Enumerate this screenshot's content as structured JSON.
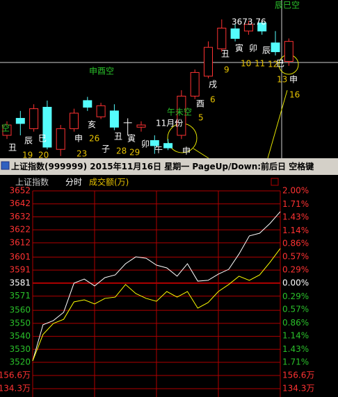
{
  "chart_data": [
    {
      "type": "candlestick",
      "ylim": [
        3486,
        3700
      ],
      "open": [
        3517,
        3540,
        3526,
        3555,
        3498,
        3526,
        3564,
        3542,
        3550,
        3534,
        3528,
        3510,
        3506,
        3517,
        3570,
        3597,
        3634,
        3661,
        3658,
        3669,
        3642,
        3617
      ],
      "high": [
        3536,
        3550,
        3559,
        3564,
        3531,
        3553,
        3569,
        3561,
        3559,
        3540,
        3536,
        3517,
        3512,
        3578,
        3606,
        3644,
        3673.76,
        3667,
        3672,
        3672,
        3658,
        3648
      ],
      "low": [
        3512,
        3517,
        3522,
        3498,
        3489,
        3522,
        3550,
        3539,
        3524,
        3517,
        3522,
        3492,
        3497,
        3512,
        3566,
        3594,
        3630,
        3644,
        3653,
        3653,
        3625,
        3611
      ],
      "close": [
        3531,
        3533,
        3553,
        3501,
        3526,
        3547,
        3555,
        3557,
        3528,
        3534,
        3531,
        3503,
        3500,
        3570,
        3602,
        3636,
        3662,
        3648,
        3667,
        3658,
        3630,
        3644
      ],
      "up_color": "#ff3232",
      "down_color": "#54fcfc",
      "flat_color": "#ffffff",
      "annotations": [
        {
          "text": "辰巳空",
          "color": "#2ac02a"
        },
        {
          "text": "3673.76",
          "color": "#ffffff"
        },
        {
          "text": "丑",
          "color": "#ffffff"
        },
        {
          "text": "寅",
          "color": "#ffffff"
        },
        {
          "text": "卯",
          "color": "#ffffff"
        },
        {
          "text": "辰",
          "color": "#ffffff"
        },
        {
          "text": "巳",
          "color": "#ffffff"
        },
        {
          "text": "9",
          "color": "#e6c200"
        },
        {
          "text": "10",
          "color": "#e6c200"
        },
        {
          "text": "11",
          "color": "#e6c200"
        },
        {
          "text": "12",
          "color": "#e6c200"
        },
        {
          "text": "13",
          "color": "#e6c200"
        },
        {
          "text": "申",
          "color": "#ffffff"
        },
        {
          "text": "16",
          "color": "#e6c200"
        },
        {
          "text": "申酉空",
          "color": "#2ac02a"
        },
        {
          "text": "戌",
          "color": "#ffffff"
        },
        {
          "text": "6",
          "color": "#e6c200"
        },
        {
          "text": "酉",
          "color": "#ffffff"
        },
        {
          "text": "5",
          "color": "#e6c200"
        },
        {
          "text": "午未空",
          "color": "#2ac02a"
        },
        {
          "text": "11月份",
          "color": "#ffffff"
        },
        {
          "text": "申",
          "color": "#ffffff"
        },
        {
          "text": "亥",
          "color": "#ffffff"
        },
        {
          "text": "26",
          "color": "#e6c200"
        },
        {
          "text": "丑",
          "color": "#ffffff"
        },
        {
          "text": "28",
          "color": "#e6c200"
        },
        {
          "text": "寅",
          "color": "#ffffff"
        },
        {
          "text": "29",
          "color": "#e6c200"
        },
        {
          "text": "子",
          "color": "#ffffff"
        },
        {
          "text": "申",
          "color": "#ffffff"
        },
        {
          "text": "23",
          "color": "#e6c200"
        },
        {
          "text": "卯",
          "color": "#ffffff"
        },
        {
          "text": "午",
          "color": "#ffffff"
        },
        {
          "text": "巳",
          "color": "#ffffff"
        },
        {
          "text": "辰",
          "color": "#ffffff"
        },
        {
          "text": "19",
          "color": "#e6c200"
        },
        {
          "text": "20",
          "color": "#e6c200"
        },
        {
          "text": "空",
          "color": "#2ac02a"
        },
        {
          "text": "丑",
          "color": "#ffffff"
        }
      ]
    },
    {
      "type": "line",
      "title": "上证指数",
      "subtitle": "分时",
      "volume_label": "成交额(万)",
      "x": [
        0,
        10,
        20,
        30,
        40,
        50,
        60,
        70,
        80,
        90,
        100,
        110,
        120,
        130,
        140,
        150,
        160,
        170,
        180,
        190,
        200,
        210,
        220,
        230,
        240
      ],
      "xlim": [
        0,
        240
      ],
      "xticks": [
        0,
        60,
        120,
        180,
        240
      ],
      "ylim": [
        3520,
        3652
      ],
      "yticks": [
        3652,
        3642,
        3632,
        3622,
        3612,
        3601,
        3591,
        3581,
        3571,
        3560,
        3550,
        3540,
        3530,
        3520
      ],
      "y2lim": [
        -1.71,
        2.0
      ],
      "y2ticks": [
        {
          "value": 2.0,
          "label": "2.00%"
        },
        {
          "value": 1.71,
          "label": "1.71%"
        },
        {
          "value": 1.43,
          "label": "1.43%"
        },
        {
          "value": 1.14,
          "label": "1.14%"
        },
        {
          "value": 0.86,
          "label": "0.86%"
        },
        {
          "value": 0.57,
          "label": "0.57%"
        },
        {
          "value": 0.29,
          "label": "0.29%"
        },
        {
          "value": 0,
          "label": "0.00%"
        },
        {
          "value": -0.29,
          "label": "0.29%"
        },
        {
          "value": -0.57,
          "label": "0.57%"
        },
        {
          "value": -0.86,
          "label": "0.86%"
        },
        {
          "value": -1.14,
          "label": "1.14%"
        },
        {
          "value": -1.43,
          "label": "1.43%"
        },
        {
          "value": -1.71,
          "label": "1.71%"
        }
      ],
      "volume_lim": [
        1202000,
        1789000
      ],
      "volume_ticks": [
        {
          "value": 1566000,
          "label": "156.6万"
        },
        {
          "value": 1343000,
          "label": "134.3万"
        }
      ],
      "grid_color": "#b00000",
      "series": [
        {
          "color": "#ffffff",
          "values": [
            3521.1,
            3548.9,
            3552.1,
            3558.5,
            3580.9,
            3584.1,
            3578.8,
            3585.2,
            3587.3,
            3595.9,
            3601.2,
            3600.1,
            3594.8,
            3592.7,
            3586.3,
            3595.9,
            3582.5,
            3583.1,
            3587.9,
            3591.6,
            3603.4,
            3617.3,
            3619.4,
            3626.9,
            3636.0
          ]
        },
        {
          "color": "#ffff00",
          "values": [
            3521.1,
            3541.4,
            3549.9,
            3553.1,
            3566.5,
            3568.1,
            3564.9,
            3569.2,
            3570.2,
            3579.9,
            3572.9,
            3569.2,
            3567.0,
            3574.5,
            3570.2,
            3574.5,
            3561.7,
            3566.0,
            3574.5,
            3579.9,
            3586.3,
            3583.1,
            3587.3,
            3597.0,
            3607.6
          ]
        }
      ]
    }
  ],
  "status_bar": {
    "text": "上证指数(999999) 2015年11月16日 星期一 PageUp/Down:前后日 空格键"
  }
}
